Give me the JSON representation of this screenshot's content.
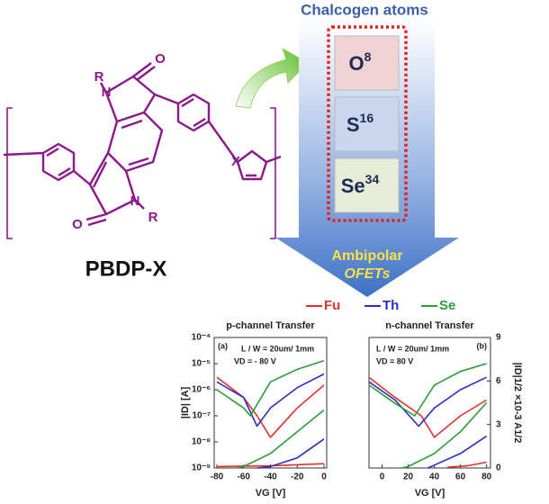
{
  "title": "Chalcogen atoms",
  "structure": {
    "labels": [
      "R",
      "N",
      "O",
      "X",
      "O",
      "N",
      "R"
    ],
    "name": "PBDP-X"
  },
  "elements": [
    {
      "symbol": "O",
      "number": 8
    },
    {
      "symbol": "S",
      "number": 16
    },
    {
      "symbol": "Se",
      "number": 34
    }
  ],
  "arrow_text": [
    "Ambipolar",
    "OFETs"
  ],
  "legend": [
    {
      "name": "Fu",
      "color": "#e0302f"
    },
    {
      "name": "Th",
      "color": "#2b2fbf"
    },
    {
      "name": "Se",
      "color": "#2e9a3a"
    }
  ],
  "chart_data": [
    {
      "type": "line",
      "title": "p-channel Transfer",
      "annotations": [
        "(a)",
        "L / W = 20um/ 1mm",
        "VD = - 80 V"
      ],
      "xlabel": "VG [V]",
      "ylabel": "|ID| [A]",
      "xlim": [
        -82,
        2
      ],
      "xticks": [
        -80,
        -60,
        -40,
        -20,
        0
      ],
      "ylim": [
        1e-09,
        0.0001
      ],
      "log_y": true,
      "yticks": [
        {
          "value": 1e-09,
          "label": "10⁻⁹"
        },
        {
          "value": 1e-08,
          "label": "10⁻⁸"
        },
        {
          "value": 1e-07,
          "label": "10⁻⁷"
        },
        {
          "value": 1e-06,
          "label": "10⁻⁶"
        },
        {
          "value": 1e-05,
          "label": "10⁻⁵"
        },
        {
          "value": 0.0001,
          "label": "10⁻⁴"
        }
      ],
      "y2lim": [
        0,
        9
      ],
      "series": [
        {
          "color": "#e0302f",
          "x": [
            -80,
            -60,
            -50,
            -40,
            -20,
            0
          ],
          "values": [
            3e-06,
            5e-07,
            1e-07,
            1.5e-08,
            2e-07,
            1.5e-06
          ]
        },
        {
          "color": "#2b2fbf",
          "x": [
            -80,
            -60,
            -50,
            -40,
            -20,
            0
          ],
          "values": [
            2e-06,
            5e-07,
            4e-08,
            2e-07,
            1.2e-06,
            4e-06
          ]
        },
        {
          "color": "#2e9a3a",
          "x": [
            -80,
            -60,
            -55,
            -40,
            -20,
            0
          ],
          "values": [
            1e-06,
            2e-07,
            1e-07,
            2e-06,
            6e-06,
            1.3e-05
          ]
        },
        {
          "color": "#e0302f",
          "axis": "y2",
          "x": [
            -80,
            -40,
            0
          ],
          "values": [
            0.1,
            0.15,
            0.3
          ]
        },
        {
          "color": "#2b2fbf",
          "axis": "y2",
          "x": [
            -50,
            -40,
            -20,
            0
          ],
          "values": [
            0,
            0.1,
            0.7,
            2
          ]
        },
        {
          "color": "#2e9a3a",
          "axis": "y2",
          "x": [
            -65,
            -60,
            -40,
            -20,
            0
          ],
          "values": [
            0,
            0.1,
            1,
            2.5,
            4
          ]
        }
      ]
    },
    {
      "type": "line",
      "title": "n-channel Transfer",
      "annotations": [
        "(b)",
        "L / W = 20um/ 1mm",
        "VD = 80 V"
      ],
      "xlabel": "VG [V]",
      "y2label": "|ID|1/2 ×10-3 A1/2",
      "xlim": [
        -10,
        83
      ],
      "xticks": [
        0,
        20,
        40,
        60,
        80
      ],
      "ylim": [
        1e-09,
        0.0001
      ],
      "log_y": true,
      "y2lim": [
        0,
        9
      ],
      "y2ticks": [
        0,
        3,
        6,
        9
      ],
      "series": [
        {
          "color": "#e0302f",
          "x": [
            -10,
            10,
            30,
            40,
            60,
            80
          ],
          "values": [
            3e-06,
            5e-07,
            1e-07,
            1.5e-08,
            1e-07,
            4e-07
          ]
        },
        {
          "color": "#2b2fbf",
          "x": [
            -10,
            10,
            28,
            40,
            60,
            80
          ],
          "values": [
            2e-06,
            4e-07,
            4e-08,
            2e-07,
            1e-06,
            3e-06
          ]
        },
        {
          "color": "#2e9a3a",
          "x": [
            -10,
            10,
            25,
            40,
            60,
            80
          ],
          "values": [
            1.5e-06,
            3e-07,
            1e-07,
            1.5e-06,
            5e-06,
            1e-05
          ]
        },
        {
          "color": "#e0302f",
          "axis": "y2",
          "x": [
            50,
            65,
            80
          ],
          "values": [
            0.05,
            0.15,
            0.4
          ]
        },
        {
          "color": "#2b2fbf",
          "axis": "y2",
          "x": [
            35,
            40,
            60,
            80
          ],
          "values": [
            0,
            0.2,
            1,
            2.2
          ]
        },
        {
          "color": "#2e9a3a",
          "axis": "y2",
          "x": [
            15,
            20,
            40,
            60,
            80
          ],
          "values": [
            0,
            0.1,
            1,
            2.5,
            4.5
          ]
        }
      ]
    }
  ]
}
